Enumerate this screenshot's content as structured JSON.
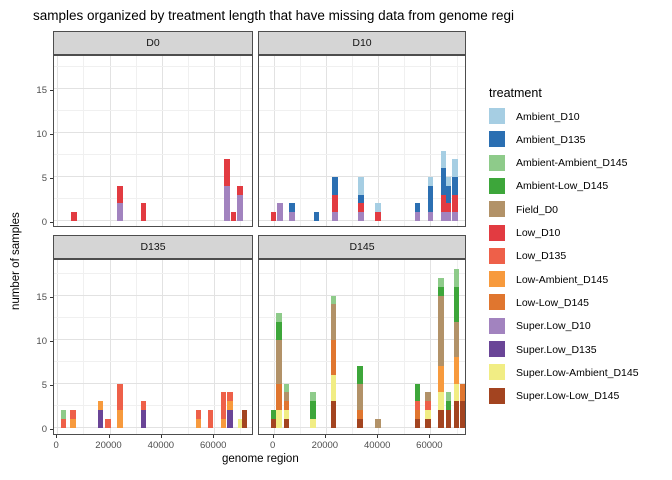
{
  "title": "samples organized by treatment length that have missing data from genome regi",
  "axes": {
    "x_label": "genome region",
    "y_label": "number of samples",
    "x_ticks": [
      0,
      20000,
      40000,
      60000
    ],
    "y_ticks": [
      0,
      5,
      10,
      15
    ]
  },
  "legend": {
    "title": "treatment",
    "items": [
      {
        "label": "Ambient_D10",
        "color": "#a6cee3"
      },
      {
        "label": "Ambient_D135",
        "color": "#2b6fb2"
      },
      {
        "label": "Ambient-Ambient_D145",
        "color": "#8ecb8a"
      },
      {
        "label": "Ambient-Low_D145",
        "color": "#3da63a"
      },
      {
        "label": "Field_D0",
        "color": "#b29268"
      },
      {
        "label": "Low_D10",
        "color": "#e23b41"
      },
      {
        "label": "Low_D135",
        "color": "#ee6049"
      },
      {
        "label": "Low-Ambient_D145",
        "color": "#f79a3d"
      },
      {
        "label": "Low-Low_D145",
        "color": "#e0762f"
      },
      {
        "label": "Super.Low_D10",
        "color": "#a283bf"
      },
      {
        "label": "Super.Low_D135",
        "color": "#6a4597"
      },
      {
        "label": "Super.Low-Ambient_D145",
        "color": "#f1ed84"
      },
      {
        "label": "Super.Low-Low_D145",
        "color": "#a34420"
      }
    ]
  },
  "chart_data": {
    "type": "bar",
    "stacked": true,
    "xlabel": "genome region",
    "ylabel": "number of samples",
    "ylim": [
      0,
      18.9
    ],
    "x_tick_values": [
      0,
      20000,
      40000,
      60000
    ],
    "y_tick_values": [
      0,
      5,
      10,
      15
    ],
    "grid": "major-and-minor",
    "legend_position": "right",
    "facets": [
      {
        "label": "D0",
        "bars": [
          {
            "x": 6500,
            "segments": [
              {
                "t": "Low_D10",
                "v": 1
              }
            ]
          },
          {
            "x": 24000,
            "segments": [
              {
                "t": "Super.Low_D10",
                "v": 2
              },
              {
                "t": "Low_D10",
                "v": 2
              }
            ]
          },
          {
            "x": 33000,
            "segments": [
              {
                "t": "Low_D10",
                "v": 2
              }
            ]
          },
          {
            "x": 64800,
            "segments": [
              {
                "t": "Super.Low_D10",
                "v": 4
              },
              {
                "t": "Low_D10",
                "v": 3
              }
            ]
          },
          {
            "x": 67300,
            "segments": [
              {
                "t": "Low_D10",
                "v": 1
              }
            ]
          },
          {
            "x": 69800,
            "segments": [
              {
                "t": "Super.Low_D10",
                "v": 3
              },
              {
                "t": "Low_D10",
                "v": 1
              }
            ]
          }
        ]
      },
      {
        "label": "D10",
        "bars": [
          {
            "x": 0,
            "segments": [
              {
                "t": "Low_D10",
                "v": 1
              }
            ]
          },
          {
            "x": 2500,
            "segments": [
              {
                "t": "Super.Low_D10",
                "v": 2
              }
            ]
          },
          {
            "x": 7000,
            "segments": [
              {
                "t": "Super.Low_D10",
                "v": 1
              },
              {
                "t": "Ambient_D135",
                "v": 1
              }
            ]
          },
          {
            "x": 16500,
            "segments": [
              {
                "t": "Ambient_D135",
                "v": 1
              }
            ]
          },
          {
            "x": 23500,
            "segments": [
              {
                "t": "Super.Low_D10",
                "v": 1
              },
              {
                "t": "Low_D10",
                "v": 2
              },
              {
                "t": "Ambient_D135",
                "v": 2
              }
            ]
          },
          {
            "x": 33500,
            "segments": [
              {
                "t": "Super.Low_D10",
                "v": 1
              },
              {
                "t": "Low_D10",
                "v": 1
              },
              {
                "t": "Ambient_D135",
                "v": 1
              },
              {
                "t": "Ambient_D10",
                "v": 2
              }
            ]
          },
          {
            "x": 40000,
            "segments": [
              {
                "t": "Low_D10",
                "v": 1
              },
              {
                "t": "Ambient_D10",
                "v": 1
              }
            ]
          },
          {
            "x": 55000,
            "segments": [
              {
                "t": "Super.Low_D10",
                "v": 1
              },
              {
                "t": "Ambient_D135",
                "v": 1
              }
            ]
          },
          {
            "x": 60000,
            "segments": [
              {
                "t": "Super.Low_D10",
                "v": 1
              },
              {
                "t": "Ambient_D135",
                "v": 3
              },
              {
                "t": "Ambient_D10",
                "v": 1
              }
            ]
          },
          {
            "x": 65000,
            "segments": [
              {
                "t": "Super.Low_D10",
                "v": 1
              },
              {
                "t": "Low_D10",
                "v": 2
              },
              {
                "t": "Ambient_D135",
                "v": 3
              },
              {
                "t": "Ambient_D10",
                "v": 2
              }
            ]
          },
          {
            "x": 67000,
            "segments": [
              {
                "t": "Super.Low_D10",
                "v": 1
              },
              {
                "t": "Low_D10",
                "v": 1
              },
              {
                "t": "Ambient_D135",
                "v": 2
              },
              {
                "t": "Ambient_D10",
                "v": 1
              }
            ]
          },
          {
            "x": 69500,
            "segments": [
              {
                "t": "Super.Low_D10",
                "v": 1
              },
              {
                "t": "Low_D10",
                "v": 2
              },
              {
                "t": "Ambient_D135",
                "v": 2
              },
              {
                "t": "Ambient_D10",
                "v": 2
              }
            ]
          }
        ]
      },
      {
        "label": "D135",
        "bars": [
          {
            "x": 2500,
            "segments": [
              {
                "t": "Low_D135",
                "v": 1
              },
              {
                "t": "Ambient-Ambient_D145",
                "v": 1
              }
            ]
          },
          {
            "x": 6000,
            "segments": [
              {
                "t": "Low-Ambient_D145",
                "v": 1
              },
              {
                "t": "Low_D135",
                "v": 1
              }
            ]
          },
          {
            "x": 16500,
            "segments": [
              {
                "t": "Super.Low_D135",
                "v": 2
              },
              {
                "t": "Low-Ambient_D145",
                "v": 1
              }
            ]
          },
          {
            "x": 19500,
            "segments": [
              {
                "t": "Low_D135",
                "v": 1
              }
            ]
          },
          {
            "x": 24000,
            "segments": [
              {
                "t": "Low-Ambient_D145",
                "v": 2
              },
              {
                "t": "Low_D135",
                "v": 3
              }
            ]
          },
          {
            "x": 33000,
            "segments": [
              {
                "t": "Super.Low_D135",
                "v": 2
              },
              {
                "t": "Low_D135",
                "v": 1
              }
            ]
          },
          {
            "x": 54000,
            "segments": [
              {
                "t": "Low-Ambient_D145",
                "v": 1
              },
              {
                "t": "Low_D135",
                "v": 1
              }
            ]
          },
          {
            "x": 58500,
            "segments": [
              {
                "t": "Low_D135",
                "v": 2
              }
            ]
          },
          {
            "x": 63500,
            "segments": [
              {
                "t": "Low-Ambient_D145",
                "v": 1
              },
              {
                "t": "Low_D135",
                "v": 3
              }
            ]
          },
          {
            "x": 66000,
            "segments": [
              {
                "t": "Super.Low_D135",
                "v": 2
              },
              {
                "t": "Low-Ambient_D145",
                "v": 1
              },
              {
                "t": "Low_D135",
                "v": 1
              }
            ]
          },
          {
            "x": 70000,
            "segments": [
              {
                "t": "Super.Low-Ambient_D145",
                "v": 1
              }
            ]
          },
          {
            "x": 71500,
            "segments": [
              {
                "t": "Super.Low-Low_D145",
                "v": 2
              }
            ]
          }
        ]
      },
      {
        "label": "D145",
        "bars": [
          {
            "x": 0,
            "segments": [
              {
                "t": "Super.Low-Low_D145",
                "v": 1
              },
              {
                "t": "Ambient-Low_D145",
                "v": 1
              }
            ]
          },
          {
            "x": 2000,
            "segments": [
              {
                "t": "Super.Low-Ambient_D145",
                "v": 2
              },
              {
                "t": "Low-Low_D145",
                "v": 3
              },
              {
                "t": "Field_D0",
                "v": 5
              },
              {
                "t": "Ambient-Low_D145",
                "v": 2
              },
              {
                "t": "Ambient-Ambient_D145",
                "v": 1
              }
            ]
          },
          {
            "x": 5000,
            "segments": [
              {
                "t": "Super.Low-Low_D145",
                "v": 1
              },
              {
                "t": "Super.Low-Ambient_D145",
                "v": 1
              },
              {
                "t": "Low-Low_D145",
                "v": 1
              },
              {
                "t": "Field_D0",
                "v": 1
              },
              {
                "t": "Ambient-Ambient_D145",
                "v": 1
              }
            ]
          },
          {
            "x": 15000,
            "segments": [
              {
                "t": "Super.Low-Ambient_D145",
                "v": 1
              },
              {
                "t": "Ambient-Low_D145",
                "v": 2
              },
              {
                "t": "Ambient-Ambient_D145",
                "v": 1
              }
            ]
          },
          {
            "x": 23000,
            "segments": [
              {
                "t": "Super.Low-Low_D145",
                "v": 3
              },
              {
                "t": "Super.Low-Ambient_D145",
                "v": 3
              },
              {
                "t": "Low-Low_D145",
                "v": 4
              },
              {
                "t": "Field_D0",
                "v": 4
              },
              {
                "t": "Ambient-Ambient_D145",
                "v": 1
              }
            ]
          },
          {
            "x": 33000,
            "segments": [
              {
                "t": "Super.Low-Low_D145",
                "v": 1
              },
              {
                "t": "Low-Low_D145",
                "v": 1
              },
              {
                "t": "Field_D0",
                "v": 3
              },
              {
                "t": "Ambient-Low_D145",
                "v": 2
              }
            ]
          },
          {
            "x": 40000,
            "segments": [
              {
                "t": "Field_D0",
                "v": 1
              }
            ]
          },
          {
            "x": 55000,
            "segments": [
              {
                "t": "Super.Low-Low_D145",
                "v": 1
              },
              {
                "t": "Low-Low_D145",
                "v": 1
              },
              {
                "t": "Low_D135",
                "v": 1
              },
              {
                "t": "Ambient-Low_D145",
                "v": 2
              }
            ]
          },
          {
            "x": 59000,
            "segments": [
              {
                "t": "Super.Low-Low_D145",
                "v": 1
              },
              {
                "t": "Super.Low-Ambient_D145",
                "v": 1
              },
              {
                "t": "Low_D135",
                "v": 1
              },
              {
                "t": "Field_D0",
                "v": 1
              }
            ]
          },
          {
            "x": 64000,
            "segments": [
              {
                "t": "Super.Low-Low_D145",
                "v": 2
              },
              {
                "t": "Super.Low-Ambient_D145",
                "v": 2
              },
              {
                "t": "Low-Ambient_D145",
                "v": 3
              },
              {
                "t": "Field_D0",
                "v": 8
              },
              {
                "t": "Ambient-Low_D145",
                "v": 1
              },
              {
                "t": "Ambient-Ambient_D145",
                "v": 1
              }
            ]
          },
          {
            "x": 67000,
            "segments": [
              {
                "t": "Super.Low-Low_D145",
                "v": 2
              },
              {
                "t": "Ambient-Low_D145",
                "v": 1
              },
              {
                "t": "Ambient-Ambient_D145",
                "v": 1
              }
            ]
          },
          {
            "x": 70000,
            "segments": [
              {
                "t": "Super.Low-Low_D145",
                "v": 3
              },
              {
                "t": "Super.Low-Ambient_D145",
                "v": 2
              },
              {
                "t": "Low-Ambient_D145",
                "v": 3
              },
              {
                "t": "Field_D0",
                "v": 4
              },
              {
                "t": "Ambient-Low_D145",
                "v": 4
              },
              {
                "t": "Ambient-Ambient_D145",
                "v": 2
              }
            ]
          },
          {
            "x": 72500,
            "segments": [
              {
                "t": "Super.Low-Low_D145",
                "v": 3
              },
              {
                "t": "Low-Low_D145",
                "v": 2
              }
            ]
          },
          {
            "x": 74500,
            "segments": [
              {
                "t": "Super.Low-Low_D145",
                "v": 3
              },
              {
                "t": "Low-Ambient_D145",
                "v": 1
              }
            ]
          }
        ]
      }
    ]
  }
}
